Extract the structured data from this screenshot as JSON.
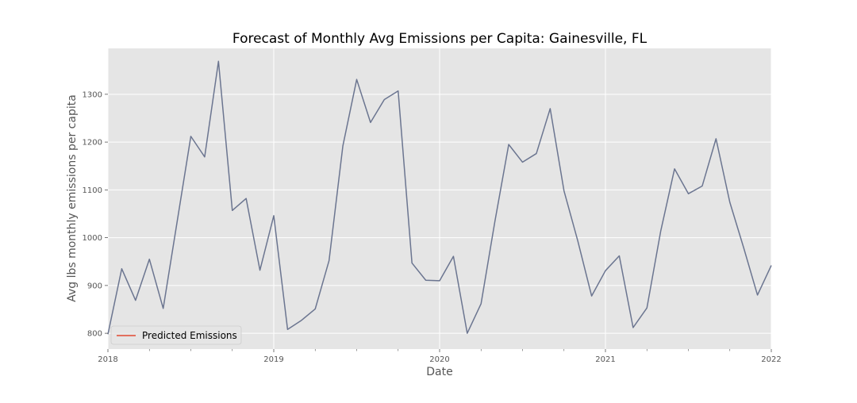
{
  "chart_data": {
    "type": "line",
    "title": "Forecast of Monthly Avg Emissions per Capita: Gainesville, FL",
    "xlabel": "Date",
    "ylabel": "Avg lbs monthly emissions per capita",
    "x_tick_labels": [
      "2018",
      "2019",
      "2020",
      "2021",
      "2022"
    ],
    "y_tick_labels": [
      "800",
      "900",
      "1000",
      "1100",
      "1200",
      "1300"
    ],
    "y_ticks": [
      800,
      900,
      1000,
      1100,
      1200,
      1300
    ],
    "xlim": [
      "2018-01",
      "2022-01"
    ],
    "ylim": [
      767,
      1396
    ],
    "grid": true,
    "legend_position": "lower-left",
    "legend": [
      "Predicted Emissions"
    ],
    "colors": {
      "plot_bg": "#e5e5e5",
      "grid": "#ffffff",
      "line": "#6b7590",
      "legend_line": "#e24a33"
    },
    "x": [
      "2018-01",
      "2018-02",
      "2018-03",
      "2018-04",
      "2018-05",
      "2018-06",
      "2018-07",
      "2018-08",
      "2018-09",
      "2018-10",
      "2018-11",
      "2018-12",
      "2019-01",
      "2019-02",
      "2019-03",
      "2019-04",
      "2019-05",
      "2019-06",
      "2019-07",
      "2019-08",
      "2019-09",
      "2019-10",
      "2019-11",
      "2019-12",
      "2020-01",
      "2020-02",
      "2020-03",
      "2020-04",
      "2020-05",
      "2020-06",
      "2020-07",
      "2020-08",
      "2020-09",
      "2020-10",
      "2020-11",
      "2020-12",
      "2021-01",
      "2021-02",
      "2021-03",
      "2021-04",
      "2021-05",
      "2021-06",
      "2021-07",
      "2021-08",
      "2021-09",
      "2021-10",
      "2021-11",
      "2021-12",
      "2022-01"
    ],
    "series": [
      {
        "values": [
          798,
          935,
          869,
          955,
          852,
          1032,
          1212,
          1169,
          1369,
          1057,
          1082,
          932,
          1046,
          808,
          827,
          851,
          952,
          1192,
          1331,
          1241,
          1289,
          1307,
          947,
          911,
          910,
          961,
          800,
          862,
          1034,
          1195,
          1158,
          1176,
          1270,
          1098,
          993,
          878,
          931,
          962,
          812,
          853,
          1014,
          1144,
          1092,
          1108,
          1207,
          1074,
          979,
          880,
          942
        ]
      }
    ]
  }
}
